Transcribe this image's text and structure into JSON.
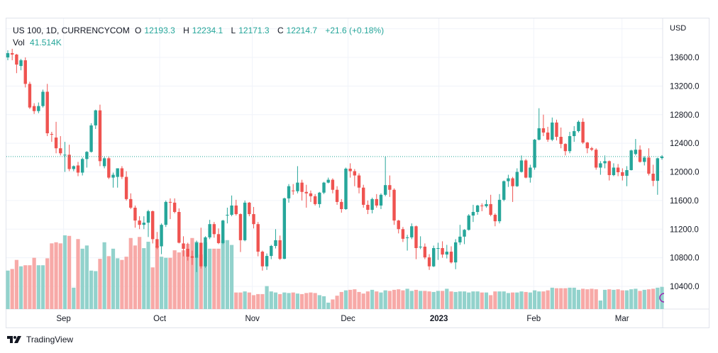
{
  "header": {
    "symbol": "US 100, 1D, CURRENCYCOM",
    "open_label": "O",
    "open": "12193.3",
    "high_label": "H",
    "high": "12234.1",
    "low_label": "L",
    "low": "12171.3",
    "close_label": "C",
    "close": "12214.7",
    "change": "+21.6 (+0.18%)",
    "vol_label": "Vol",
    "vol": "41.514K"
  },
  "currency": "USD",
  "branding": "TradingView",
  "colors": {
    "up": "#26a69a",
    "down": "#ef5350",
    "up_vol": "#92d2cc",
    "down_vol": "#f7a9a7",
    "grid": "#f0f3fa",
    "marker": "#9c27b0"
  },
  "chart_data": {
    "type": "candlestick",
    "title": "US 100, 1D, CURRENCYCOM",
    "ylabel": "USD",
    "ylim": [
      10150,
      14000
    ],
    "y_ticks": [
      "13600.0",
      "13200.0",
      "12800.0",
      "12400.0",
      "12000.0",
      "11600.0",
      "11200.0",
      "10800.0",
      "10400.0"
    ],
    "y_tick_values": [
      13600,
      13200,
      12800,
      12400,
      12000,
      11600,
      11200,
      10800,
      10400
    ],
    "x_ticks": [
      {
        "label": "Sep",
        "index": 12.7
      },
      {
        "label": "Oct",
        "index": 34.6
      },
      {
        "label": "Nov",
        "index": 55.7
      },
      {
        "label": "Dec",
        "index": 77.5
      },
      {
        "label": "2023",
        "index": 98.2
      },
      {
        "label": "Feb",
        "index": 119.8
      },
      {
        "label": "Mar",
        "index": 139.9
      }
    ],
    "last_price": 12214.7,
    "grid": true,
    "ohlc": [
      [
        13600,
        13700,
        13560,
        13660
      ],
      [
        13660,
        13720,
        13560,
        13640
      ],
      [
        13640,
        13650,
        13380,
        13500
      ],
      [
        13480,
        13580,
        13420,
        13560
      ],
      [
        13560,
        13600,
        13180,
        13230
      ],
      [
        13230,
        13260,
        12880,
        12900
      ],
      [
        12920,
        12960,
        12810,
        12850
      ],
      [
        12850,
        12970,
        12820,
        12920
      ],
      [
        12920,
        13150,
        12900,
        13120
      ],
      [
        13120,
        13230,
        12500,
        12540
      ],
      [
        12530,
        12560,
        12420,
        12520
      ],
      [
        12480,
        12700,
        12260,
        12330
      ],
      [
        12330,
        12500,
        12230,
        12260
      ],
      [
        12230,
        12420,
        12000,
        12240
      ],
      [
        12240,
        12380,
        12010,
        12040
      ],
      [
        12040,
        12090,
        12010,
        12080
      ],
      [
        12090,
        12140,
        11940,
        11990
      ],
      [
        11990,
        12200,
        11950,
        12180
      ],
      [
        12180,
        12290,
        12060,
        12280
      ],
      [
        12280,
        12680,
        12270,
        12650
      ],
      [
        12650,
        12870,
        12600,
        12860
      ],
      [
        12860,
        12940,
        12080,
        12150
      ],
      [
        12080,
        12210,
        12050,
        12190
      ],
      [
        12190,
        12210,
        11900,
        11920
      ],
      [
        11920,
        11990,
        11780,
        11960
      ],
      [
        11930,
        12050,
        11780,
        12050
      ],
      [
        12050,
        12080,
        11900,
        11930
      ],
      [
        11930,
        12010,
        11600,
        11620
      ],
      [
        11620,
        11700,
        11480,
        11500
      ],
      [
        11500,
        11530,
        11220,
        11320
      ],
      [
        11320,
        11380,
        11200,
        11260
      ],
      [
        11260,
        11380,
        11200,
        11290
      ],
      [
        11290,
        11470,
        11090,
        11450
      ],
      [
        11450,
        11460,
        11000,
        11060
      ],
      [
        11060,
        11160,
        10920,
        10940
      ],
      [
        10960,
        11280,
        10850,
        11260
      ],
      [
        11260,
        11600,
        11230,
        11580
      ],
      [
        11580,
        11630,
        11340,
        11570
      ],
      [
        11570,
        11630,
        11420,
        11440
      ],
      [
        11440,
        11490,
        11000,
        11010
      ],
      [
        11000,
        11100,
        10820,
        10925
      ],
      [
        10925,
        11010,
        10760,
        10815
      ],
      [
        10820,
        10900,
        10700,
        10800
      ],
      [
        10800,
        11040,
        10600,
        11010
      ],
      [
        11010,
        11220,
        10650,
        10680
      ],
      [
        10680,
        11100,
        10660,
        11085
      ],
      [
        11085,
        11330,
        11060,
        11270
      ],
      [
        11270,
        11300,
        11080,
        11130
      ],
      [
        11130,
        11210,
        10990,
        11005
      ],
      [
        11005,
        11330,
        10990,
        11320
      ],
      [
        11390,
        11500,
        11280,
        11400
      ],
      [
        11400,
        11670,
        11380,
        11530
      ],
      [
        11530,
        11610,
        11390,
        11410
      ],
      [
        11410,
        11420,
        10880,
        11045
      ],
      [
        11045,
        11600,
        11030,
        11570
      ],
      [
        11570,
        11580,
        11380,
        11410
      ],
      [
        11410,
        11510,
        11210,
        11270
      ],
      [
        11270,
        11300,
        10820,
        10885
      ],
      [
        10885,
        10900,
        10620,
        10680
      ],
      [
        10680,
        10860,
        10630,
        10825
      ],
      [
        10825,
        10980,
        10780,
        10965
      ],
      [
        10965,
        11200,
        10930,
        11045
      ],
      [
        11045,
        11110,
        10770,
        10785
      ],
      [
        10785,
        11640,
        10780,
        11630
      ],
      [
        11630,
        11830,
        11570,
        11800
      ],
      [
        11740,
        11830,
        11680,
        11730
      ],
      [
        11730,
        12080,
        11700,
        11850
      ],
      [
        11850,
        11890,
        11600,
        11720
      ],
      [
        11720,
        11820,
        11500,
        11700
      ],
      [
        11700,
        11740,
        11580,
        11660
      ],
      [
        11660,
        11690,
        11530,
        11550
      ],
      [
        11550,
        11720,
        11500,
        11710
      ],
      [
        11710,
        11860,
        11690,
        11850
      ],
      [
        11850,
        11920,
        11840,
        11890
      ],
      [
        11890,
        11910,
        11700,
        11750
      ],
      [
        11750,
        11800,
        11540,
        11580
      ],
      [
        11580,
        11620,
        11430,
        11480
      ],
      [
        11480,
        12060,
        11470,
        12045
      ],
      [
        12045,
        12120,
        11920,
        12010
      ],
      [
        12010,
        12040,
        11800,
        11950
      ],
      [
        11950,
        11980,
        11700,
        11780
      ],
      [
        11780,
        11820,
        11500,
        11540
      ],
      [
        11540,
        11600,
        11410,
        11470
      ],
      [
        11470,
        11640,
        11420,
        11620
      ],
      [
        11620,
        11690,
        11500,
        11530
      ],
      [
        11530,
        11700,
        11480,
        11680
      ],
      [
        11680,
        12215,
        11660,
        11815
      ],
      [
        11815,
        11950,
        11650,
        11750
      ],
      [
        11750,
        11770,
        11260,
        11320
      ],
      [
        11320,
        11330,
        11140,
        11200
      ],
      [
        11200,
        11230,
        11020,
        11065
      ],
      [
        11085,
        11120,
        10900,
        11085
      ],
      [
        11085,
        11280,
        11060,
        11240
      ],
      [
        11240,
        11250,
        10780,
        10935
      ],
      [
        10950,
        11100,
        10920,
        10955
      ],
      [
        10955,
        11000,
        10780,
        10805
      ],
      [
        10805,
        10850,
        10630,
        10680
      ],
      [
        10680,
        10970,
        10670,
        10935
      ],
      [
        10935,
        11010,
        10770,
        10935
      ],
      [
        10935,
        11030,
        10800,
        10845
      ],
      [
        10845,
        10980,
        10790,
        10885
      ],
      [
        10885,
        10960,
        10720,
        10735
      ],
      [
        10735,
        11060,
        10640,
        11015
      ],
      [
        11015,
        11260,
        10980,
        11095
      ],
      [
        11095,
        11200,
        10990,
        11190
      ],
      [
        11190,
        11410,
        11180,
        11390
      ],
      [
        11390,
        11540,
        11300,
        11440
      ],
      [
        11440,
        11540,
        11400,
        11530
      ],
      [
        11530,
        11560,
        11450,
        11520
      ],
      [
        11520,
        11610,
        11500,
        11550
      ],
      [
        11550,
        11680,
        11380,
        11400
      ],
      [
        11400,
        11420,
        11240,
        11310
      ],
      [
        11310,
        11690,
        11280,
        11610
      ],
      [
        11610,
        11880,
        11590,
        11870
      ],
      [
        11870,
        11960,
        11790,
        11910
      ],
      [
        11910,
        11930,
        11580,
        11800
      ],
      [
        11800,
        12050,
        11790,
        12000
      ],
      [
        12000,
        12230,
        11990,
        12160
      ],
      [
        12160,
        12180,
        11910,
        11920
      ],
      [
        11920,
        12100,
        11850,
        12060
      ],
      [
        12060,
        12460,
        12030,
        12450
      ],
      [
        12450,
        12890,
        12440,
        12610
      ],
      [
        12610,
        12800,
        12500,
        12550
      ],
      [
        12550,
        12630,
        12420,
        12450
      ],
      [
        12450,
        12760,
        12430,
        12690
      ],
      [
        12690,
        12730,
        12440,
        12490
      ],
      [
        12490,
        12620,
        12330,
        12390
      ],
      [
        12390,
        12400,
        12230,
        12290
      ],
      [
        12290,
        12560,
        12260,
        12500
      ],
      [
        12500,
        12640,
        12420,
        12570
      ],
      [
        12570,
        12720,
        12550,
        12700
      ],
      [
        12700,
        12750,
        12390,
        12410
      ],
      [
        12410,
        12420,
        12260,
        12330
      ],
      [
        12330,
        12350,
        12290,
        12310
      ],
      [
        12310,
        12330,
        12030,
        12060
      ],
      [
        12060,
        12150,
        11960,
        12120
      ],
      [
        12120,
        12230,
        12050,
        12150
      ],
      [
        12150,
        12160,
        11880,
        11955
      ],
      [
        11955,
        12120,
        11940,
        12060
      ],
      [
        12060,
        12110,
        11940,
        11995
      ],
      [
        11995,
        12050,
        11880,
        11945
      ],
      [
        11945,
        12080,
        11800,
        12025
      ],
      [
        12025,
        12310,
        12020,
        12300
      ],
      [
        12250,
        12460,
        12230,
        12310
      ],
      [
        12310,
        12370,
        12130,
        12140
      ],
      [
        12140,
        12220,
        12090,
        12200
      ],
      [
        12200,
        12330,
        11950,
        11975
      ],
      [
        11975,
        12100,
        11800,
        11875
      ],
      [
        11875,
        12200,
        11680,
        12190
      ],
      [
        12193.3,
        12234.1,
        12171.3,
        12214.7
      ]
    ],
    "volume_k": [
      72,
      75,
      92,
      80,
      82,
      82,
      96,
      82,
      82,
      95,
      123,
      125,
      123,
      138,
      137,
      40,
      131,
      113,
      119,
      72,
      71,
      94,
      125,
      99,
      113,
      95,
      92,
      98,
      133,
      119,
      135,
      114,
      126,
      78,
      118,
      98,
      96,
      96,
      110,
      106,
      110,
      122,
      133,
      126,
      102,
      125,
      113,
      113,
      113,
      129,
      129,
      120,
      31,
      31,
      33,
      31,
      26,
      28,
      28,
      43,
      33,
      31,
      28,
      31,
      30,
      31,
      29,
      28,
      30,
      31,
      30,
      26,
      24,
      12,
      18,
      25,
      32,
      35,
      36,
      37,
      32,
      29,
      33,
      36,
      33,
      31,
      35,
      34,
      36,
      37,
      35,
      38,
      34,
      36,
      34,
      34,
      33,
      32,
      34,
      34,
      38,
      33,
      32,
      33,
      33,
      31,
      33,
      33,
      31,
      31,
      26,
      33,
      33,
      33,
      30,
      31,
      31,
      33,
      32,
      31,
      35,
      33,
      33,
      35,
      40,
      39,
      39,
      39,
      40,
      40,
      36,
      38,
      37,
      38,
      37,
      16,
      36,
      37,
      36,
      37,
      35,
      35,
      37,
      38,
      34,
      36,
      37,
      38,
      40,
      41.514
    ]
  }
}
